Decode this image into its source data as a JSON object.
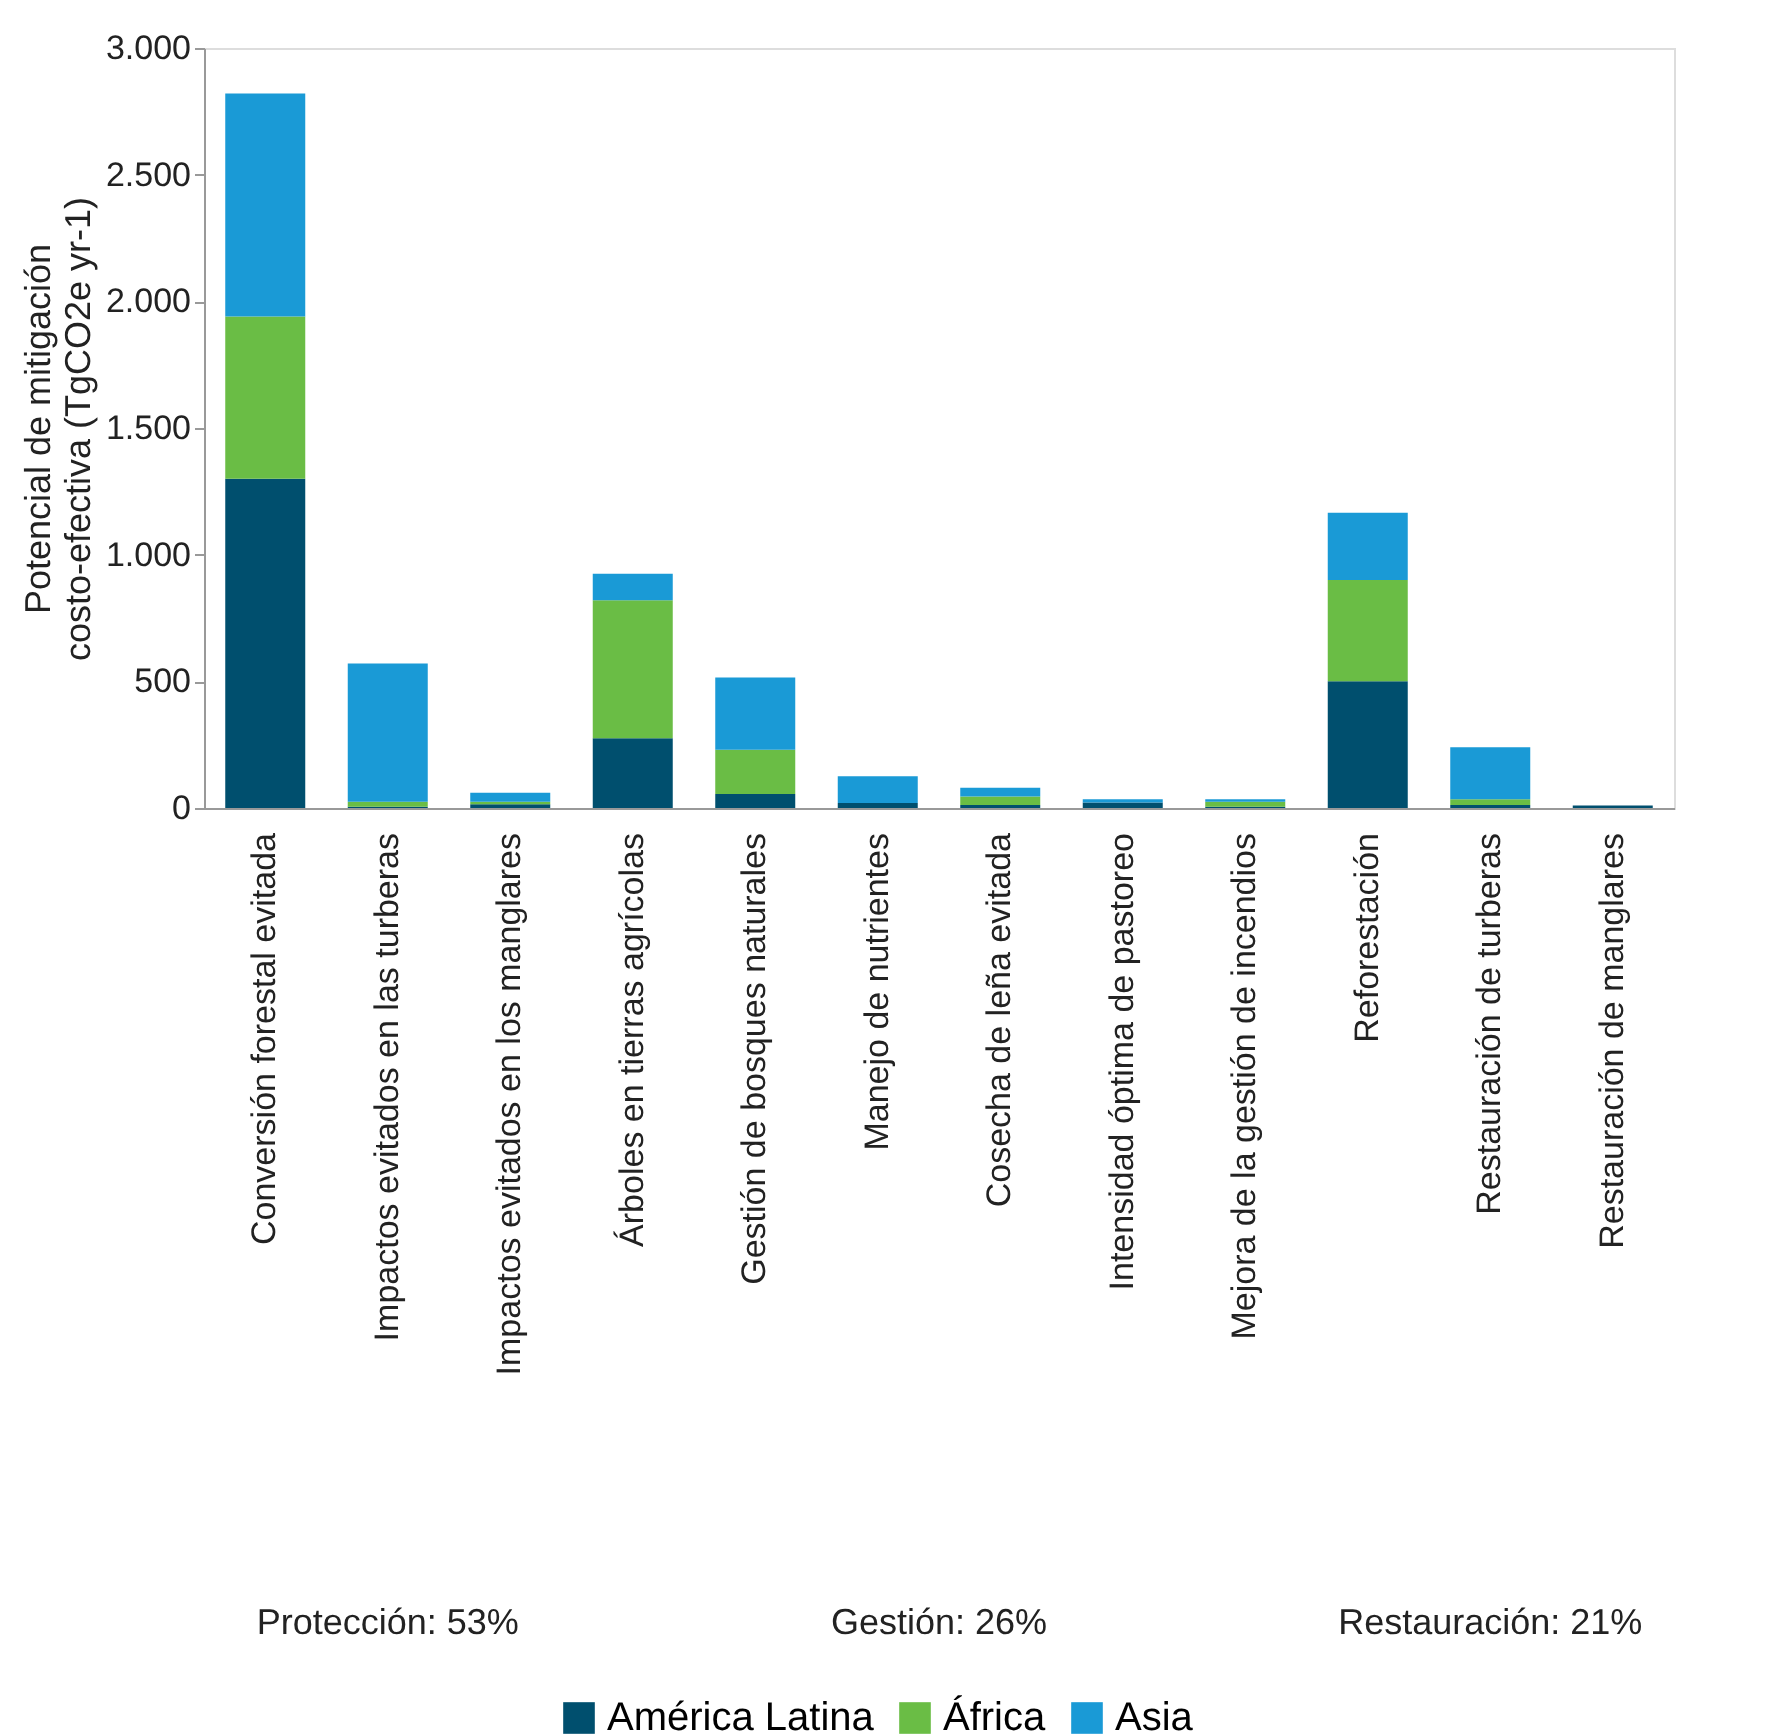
{
  "chart_data": {
    "type": "bar",
    "stacked": true,
    "ylabel": "Potencial de mitigación\ncosto-efectiva (TgCO2e yr-1)",
    "categories": [
      "Conversión forestal evitada",
      "Impactos evitados en las turberas",
      "Impactos evitados en los manglares",
      "Árboles en tierras agrícolas",
      "Gestión de bosques naturales",
      "Manejo de nutrientes",
      "Cosecha de leña evitada",
      "Intensidad óptima de pastoreo",
      "Mejora de la gestión de incendios",
      "Reforestación",
      "Restauración de turberas",
      "Restauración de manglares"
    ],
    "series": [
      {
        "name": "América Latina",
        "color": "#004f6e",
        "values": [
          1300,
          5,
          15,
          275,
          55,
          20,
          12,
          22,
          5,
          500,
          12,
          10
        ]
      },
      {
        "name": "África",
        "color": "#6abd45",
        "values": [
          640,
          20,
          10,
          545,
          175,
          0,
          33,
          null,
          20,
          400,
          23,
          0
        ]
      },
      {
        "name": "Asia",
        "color": "#1a9ad6",
        "values": [
          880,
          545,
          35,
          105,
          285,
          105,
          35,
          13,
          10,
          265,
          205,
          null
        ]
      }
    ],
    "ylim": [
      0,
      3000
    ],
    "yticks": [
      {
        "value": 0,
        "label": "0"
      },
      {
        "value": 500,
        "label": "500"
      },
      {
        "value": 1000,
        "label": "1.000"
      },
      {
        "value": 1500,
        "label": "1.500"
      },
      {
        "value": 2000,
        "label": "2.000"
      },
      {
        "value": 2500,
        "label": "2.500"
      },
      {
        "value": 3000,
        "label": "3.000"
      }
    ],
    "annotations": [
      "Protección: 53%",
      "Gestión: 26%",
      "Restauración: 21%"
    ],
    "grid": false,
    "legend": "bottom"
  }
}
